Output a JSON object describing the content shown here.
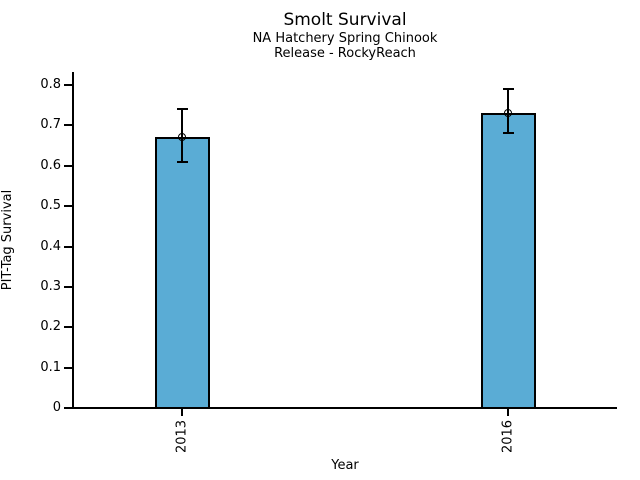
{
  "chart_data": {
    "type": "bar",
    "title": "Smolt Survival",
    "subtitle_lines": [
      "NA Hatchery Spring Chinook",
      "Release - RockyReach"
    ],
    "xlabel": "Year",
    "ylabel": "PIT-Tag Survival",
    "categories": [
      "2013",
      "2016"
    ],
    "series": [
      {
        "name": "PIT-Tag Survival",
        "values": [
          0.67,
          0.73
        ],
        "ci_low": [
          0.61,
          0.68
        ],
        "ci_high": [
          0.74,
          0.79
        ]
      }
    ],
    "ylim": [
      0,
      0.83
    ],
    "yticks": [
      0,
      0.1,
      0.2,
      0.3,
      0.4,
      0.5,
      0.6,
      0.7,
      0.8
    ],
    "grid": false,
    "legend": false,
    "marker": "open-circle",
    "bar_color": "#5AACD5",
    "bar_border_color": "#000000",
    "error_bar_color": "#000000",
    "axis_color": "#000000",
    "background_color": "#FFFFFF"
  }
}
